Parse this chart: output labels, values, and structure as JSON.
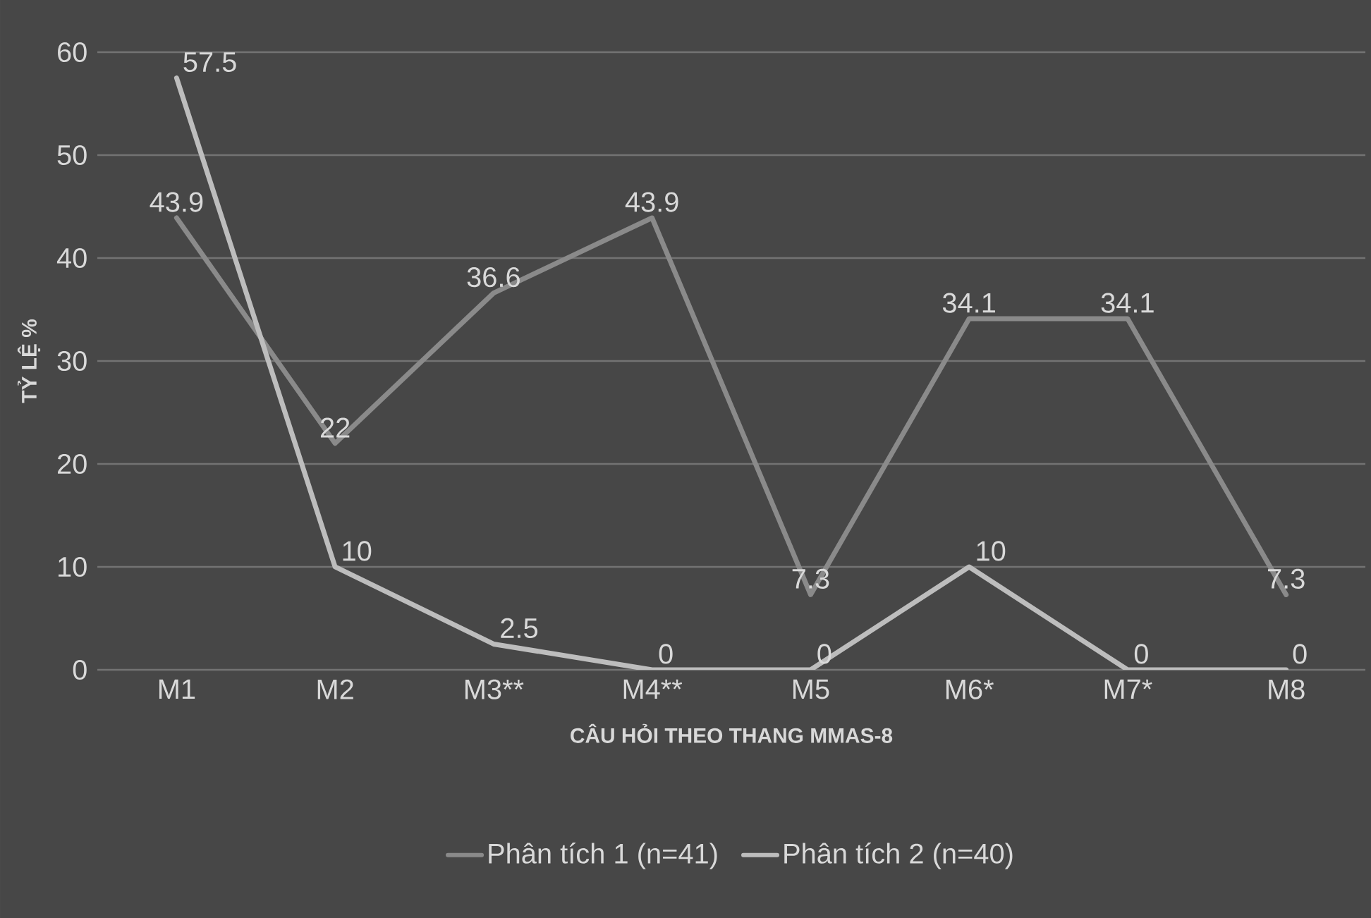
{
  "chart_data": {
    "type": "line",
    "categories": [
      "M1",
      "M2",
      "M3**",
      "M4**",
      "M5",
      "M6*",
      "M7*",
      "M8"
    ],
    "xlabel": "CÂU HỎI THEO THANG MMAS-8",
    "ylabel": "TỶ LỆ %",
    "ylim": [
      0,
      60
    ],
    "yticks": [
      0,
      10,
      20,
      30,
      40,
      50,
      60
    ],
    "grid": "y",
    "legend": "bottom",
    "data_labels": true,
    "marker": "none",
    "line_style": "solid",
    "series": [
      {
        "name": "Phân tích 1 (n=41)",
        "color": "#8a8a8a",
        "values": [
          43.9,
          22,
          36.6,
          43.9,
          7.3,
          34.1,
          34.1,
          7.3
        ]
      },
      {
        "name": "Phân tích 2 (n=40)",
        "color": "#bdbdbd",
        "values": [
          57.5,
          10,
          2.5,
          0,
          0,
          10,
          0,
          0
        ]
      }
    ]
  }
}
